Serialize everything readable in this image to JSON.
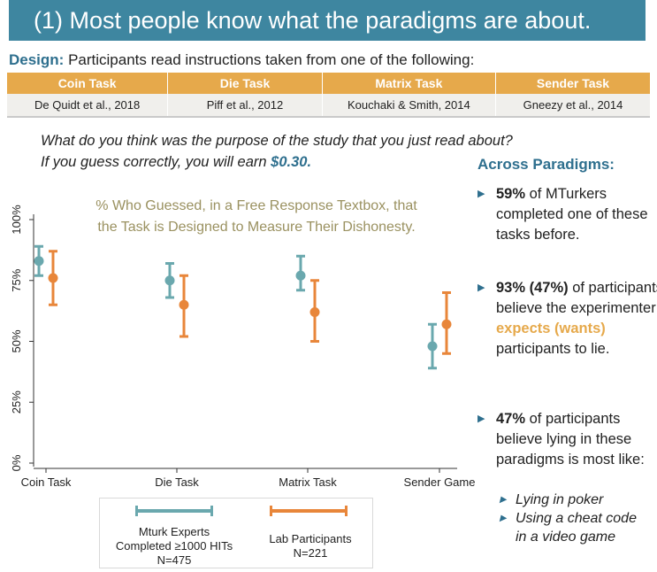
{
  "title": "(1) Most people know what the paradigms are about.",
  "design": {
    "label": "Design:",
    "text": "Participants read instructions taken from one of the following:"
  },
  "tasks": [
    {
      "name": "Coin Task",
      "citation": "De Quidt et al., 2018"
    },
    {
      "name": "Die Task",
      "citation": "Piff et al., 2012"
    },
    {
      "name": "Matrix Task",
      "citation": "Kouchaki & Smith, 2014"
    },
    {
      "name": "Sender Task",
      "citation": "Gneezy et al., 2014"
    }
  ],
  "question": {
    "line1": "What do you think was the purpose of the study that you just read about?",
    "line2_prefix": "If you guess correctly, you will earn",
    "reward": "$0.30."
  },
  "across": {
    "title": "Across Paradigms:",
    "b1_bold": "59%",
    "b1_rest": " of MTurkers completed one of these tasks before.",
    "b2_bold": "93% (47%)",
    "b2_mid": " of participants believe the experimenter ",
    "b2_accent": "expects (wants)",
    "b2_end": " participants to lie.",
    "b3_bold": "47%",
    "b3_rest": " of participants believe lying in these paradigms is most like:",
    "sub1": "Lying in poker",
    "sub2_line1": "Using a cheat code",
    "sub2_line2": "in a video game"
  },
  "colors": {
    "title_bg": "#3e86a0",
    "accent_blue": "#2e6f8e",
    "table_header": "#e6a94b",
    "mturk": "#6aa8ae",
    "lab": "#e8863a",
    "chart_title": "#9a9160"
  },
  "chart_data": {
    "type": "errorbar",
    "title_line1": "% Who Guessed, in a Free Response Textbox, that",
    "title_line2": "the Task is Designed to Measure Their Dishonesty.",
    "categories": [
      "Coin Task",
      "Die Task",
      "Matrix Task",
      "Sender Game"
    ],
    "yticks": [
      "0%",
      "25%",
      "50%",
      "75%",
      "100%"
    ],
    "ylim": [
      0,
      100
    ],
    "series": [
      {
        "name_line1": "Mturk Experts",
        "name_line2": "Completed ≥1000 HITs",
        "name_line3": "N=475",
        "values": [
          83,
          75,
          77,
          48
        ],
        "lower": [
          77,
          68,
          71,
          39
        ],
        "upper": [
          89,
          82,
          85,
          57
        ]
      },
      {
        "name_line1": "Lab Participants",
        "name_line2": "N=221",
        "values": [
          76,
          65,
          62,
          57
        ],
        "lower": [
          65,
          52,
          50,
          45
        ],
        "upper": [
          87,
          77,
          75,
          70
        ]
      }
    ]
  }
}
